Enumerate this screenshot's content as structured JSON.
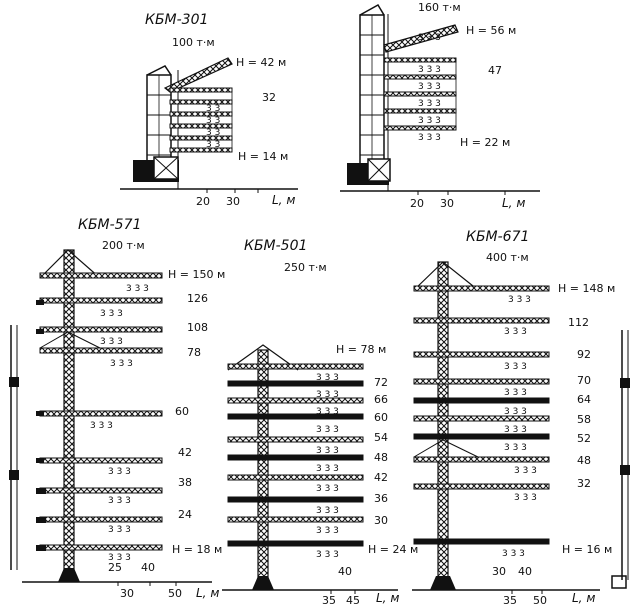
{
  "colors": {
    "ink": "#111111",
    "paper": "#ffffff"
  },
  "cranes": [
    {
      "name": "КБМ-301",
      "moment": "100 т·м",
      "heights": [
        "H = 42 м",
        "32",
        "H = 14 м"
      ],
      "ticks": [
        "20",
        "30"
      ],
      "axis": "L, м"
    },
    {
      "name": "",
      "moment": "160 т·м",
      "heights": [
        "H = 56 м",
        "47",
        "H = 22 м"
      ],
      "ticks": [
        "20",
        "30"
      ],
      "axis": "L, м"
    },
    {
      "name": "КБМ-571",
      "moment": "200 т·м",
      "heights": [
        "H = 150 м",
        "126",
        "108",
        "78",
        "60",
        "42",
        "38",
        "24",
        "H = 18 м"
      ],
      "ticks": [
        "25",
        "40",
        "30",
        "50"
      ],
      "axis": "L, м"
    },
    {
      "name": "КБМ-501",
      "moment": "250 т·м",
      "heights": [
        "H = 78 м",
        "72",
        "66",
        "60",
        "54",
        "48",
        "42",
        "36",
        "30",
        "H = 24 м"
      ],
      "ticks": [
        "40",
        "35",
        "45"
      ],
      "axis": "L, м"
    },
    {
      "name": "КБМ-671",
      "moment": "400 т·м",
      "heights": [
        "H = 148 м",
        "112",
        "92",
        "70",
        "64",
        "58",
        "52",
        "48",
        "32",
        "H = 16 м"
      ],
      "ticks": [
        "30",
        "40",
        "35",
        "50"
      ],
      "axis": "L, м"
    }
  ]
}
